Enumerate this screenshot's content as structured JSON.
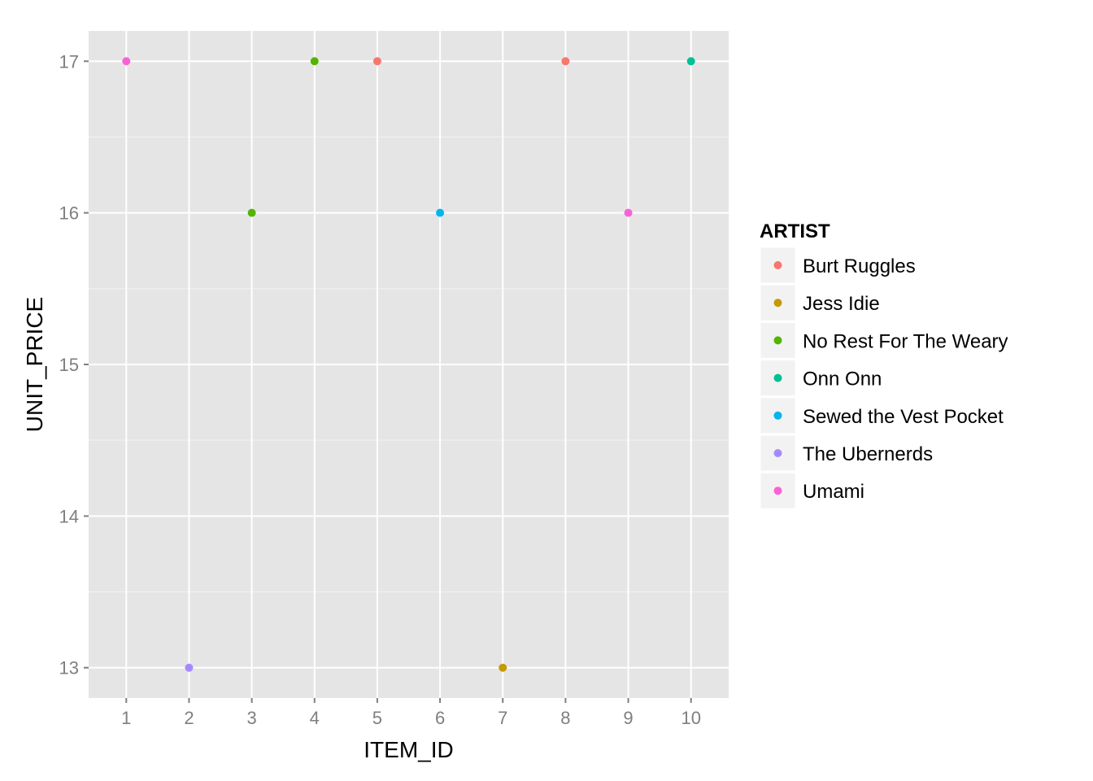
{
  "chart_data": {
    "type": "scatter",
    "title": "",
    "xlabel": "ITEM_ID",
    "ylabel": "UNIT_PRICE",
    "xlim": [
      0.4,
      10.6
    ],
    "ylim": [
      12.8,
      17.2
    ],
    "x_ticks": [
      1,
      2,
      3,
      4,
      5,
      6,
      7,
      8,
      9,
      10
    ],
    "y_ticks": [
      13,
      14,
      15,
      16,
      17
    ],
    "grid": true,
    "legend": {
      "title": "ARTIST",
      "placement": "right"
    },
    "series": [
      {
        "name": "Burt Ruggles",
        "color": "#F8766D",
        "points": [
          {
            "x": 5,
            "y": 17
          },
          {
            "x": 8,
            "y": 17
          }
        ]
      },
      {
        "name": "Jess Idie",
        "color": "#C49A00",
        "points": [
          {
            "x": 7,
            "y": 13
          }
        ]
      },
      {
        "name": "No Rest For The Weary",
        "color": "#53B400",
        "points": [
          {
            "x": 3,
            "y": 16
          },
          {
            "x": 4,
            "y": 17
          }
        ]
      },
      {
        "name": "Onn Onn",
        "color": "#00C094",
        "points": [
          {
            "x": 10,
            "y": 17
          }
        ]
      },
      {
        "name": "Sewed the Vest Pocket",
        "color": "#00B6EB",
        "points": [
          {
            "x": 6,
            "y": 16
          }
        ]
      },
      {
        "name": "The Ubernerds",
        "color": "#A58AFF",
        "points": [
          {
            "x": 2,
            "y": 13
          }
        ]
      },
      {
        "name": "Umami",
        "color": "#FB61D7",
        "points": [
          {
            "x": 1,
            "y": 17
          },
          {
            "x": 9,
            "y": 16
          }
        ]
      }
    ]
  },
  "style": {
    "panel_bg": "#E5E5E5",
    "grid_color": "#FFFFFF",
    "tick_color": "#7F7F7F",
    "legend_key_bg": "#F2F2F2"
  }
}
